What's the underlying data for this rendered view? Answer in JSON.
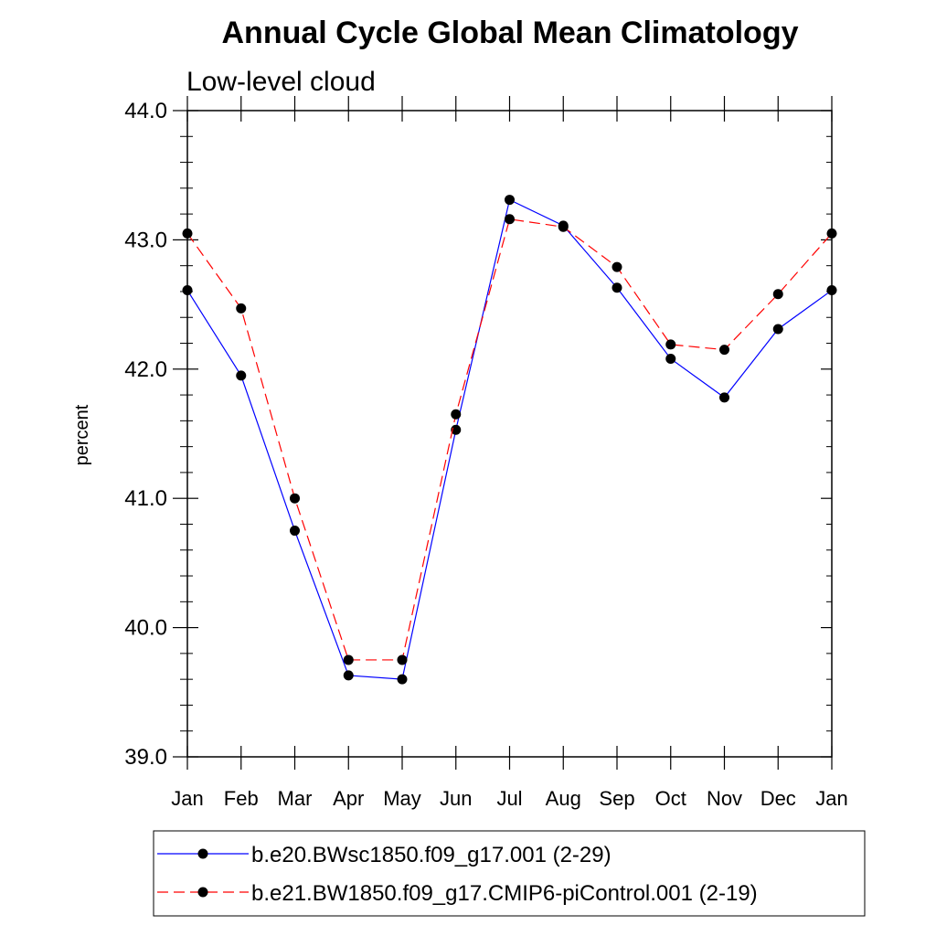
{
  "chart_data": {
    "type": "line",
    "title": "Annual Cycle Global Mean Climatology",
    "subtitle": "Low-level cloud",
    "xlabel": "",
    "ylabel": "percent",
    "ylim": [
      39.0,
      44.0
    ],
    "yticks": [
      "39.0",
      "40.0",
      "41.0",
      "42.0",
      "43.0",
      "44.0"
    ],
    "ytick_values": [
      39.0,
      40.0,
      41.0,
      42.0,
      43.0,
      44.0
    ],
    "categories": [
      "Jan",
      "Feb",
      "Mar",
      "Apr",
      "May",
      "Jun",
      "Jul",
      "Aug",
      "Sep",
      "Oct",
      "Nov",
      "Dec",
      "Jan"
    ],
    "grid": false,
    "legend_position": "bottom",
    "series": [
      {
        "name": "b.e20.BWsc1850.f09_g17.001 (2-29)",
        "color": "#0000ff",
        "line_style": "solid",
        "marker": "filled-circle",
        "values": [
          42.61,
          41.95,
          40.75,
          39.63,
          39.6,
          41.53,
          43.31,
          43.11,
          42.63,
          42.08,
          41.78,
          42.31,
          42.61
        ]
      },
      {
        "name": "b.e21.BW1850.f09_g17.CMIP6-piControl.001 (2-19)",
        "color": "#ff0000",
        "line_style": "dashed",
        "marker": "filled-circle",
        "values": [
          43.05,
          42.47,
          41.0,
          39.75,
          39.75,
          41.65,
          43.16,
          43.1,
          42.79,
          42.19,
          42.15,
          42.58,
          43.05
        ]
      }
    ]
  }
}
